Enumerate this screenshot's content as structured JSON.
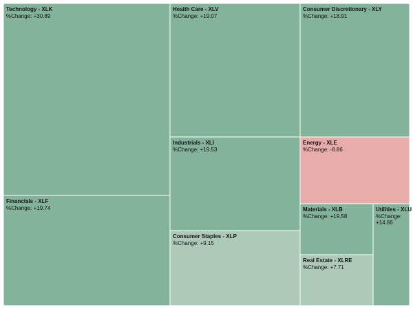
{
  "colors": {
    "strong_gain": "#84b39b",
    "mild_gain": "#adc9b8",
    "loss": "#e8acab",
    "border": "#ffffff"
  },
  "chart_data": {
    "type": "treemap",
    "title": "",
    "value_prefix": "%Change: ",
    "items": [
      {
        "name": "Technology - XLK",
        "change": "+30.89",
        "value": 30.89
      },
      {
        "name": "Health Care - XLV",
        "change": "+19.07",
        "value": 19.07
      },
      {
        "name": "Consumer Discretionary - XLY",
        "change": "+18.91",
        "value": 18.91
      },
      {
        "name": "Industrials - XLI",
        "change": "+19.53",
        "value": 19.53
      },
      {
        "name": "Energy - XLE",
        "change": "-8.86",
        "value": -8.86
      },
      {
        "name": "Financials - XLF",
        "change": "+19.74",
        "value": 19.74
      },
      {
        "name": "Materials - XLB",
        "change": "+19.58",
        "value": 19.58
      },
      {
        "name": "Utilities - XLU",
        "change": "+14.66",
        "value": 14.66
      },
      {
        "name": "Consumer Staples - XLP",
        "change": "+9.15",
        "value": 9.15
      },
      {
        "name": "Real Estate - XLRE",
        "change": "+7.71",
        "value": 7.71
      }
    ]
  }
}
